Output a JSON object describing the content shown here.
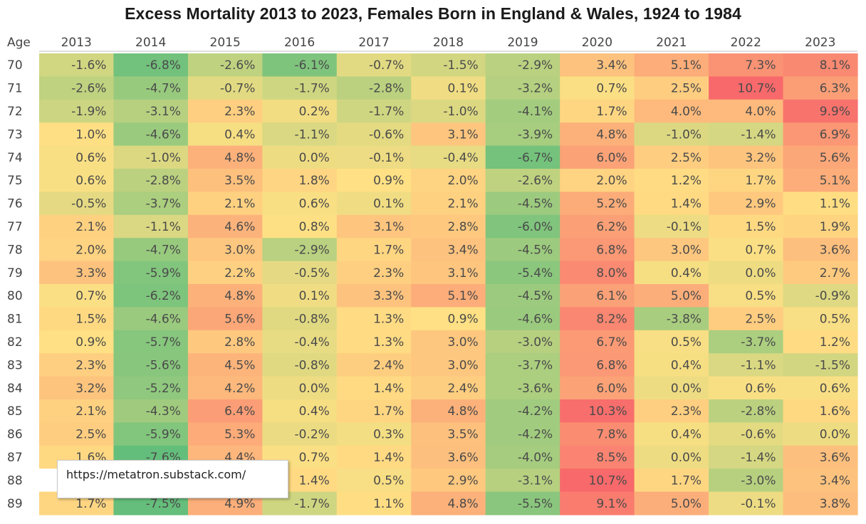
{
  "chart_data": {
    "type": "heatmap",
    "title": "Excess Mortality 2013 to 2023, Females Born in England & Wales, 1924 to 1984",
    "row_header": "Age",
    "columns": [
      "2013",
      "2014",
      "2015",
      "2016",
      "2017",
      "2018",
      "2019",
      "2020",
      "2021",
      "2022",
      "2023"
    ],
    "rows": [
      {
        "age": "70",
        "values": [
          "-1.6%",
          "-6.8%",
          "-2.6%",
          "-6.1%",
          "-0.7%",
          "-1.5%",
          "-2.9%",
          "3.4%",
          "5.1%",
          "7.3%",
          "8.1%"
        ]
      },
      {
        "age": "71",
        "values": [
          "-2.6%",
          "-4.7%",
          "-0.7%",
          "-1.7%",
          "-2.8%",
          "0.1%",
          "-3.2%",
          "0.7%",
          "2.5%",
          "10.7%",
          "6.3%"
        ]
      },
      {
        "age": "72",
        "values": [
          "-1.9%",
          "-3.1%",
          "2.3%",
          "0.2%",
          "-1.7%",
          "-1.0%",
          "-4.1%",
          "1.7%",
          "4.0%",
          "4.0%",
          "9.9%"
        ]
      },
      {
        "age": "73",
        "values": [
          "1.0%",
          "-4.6%",
          "0.4%",
          "-1.1%",
          "-0.6%",
          "3.1%",
          "-3.9%",
          "4.8%",
          "-1.0%",
          "-1.4%",
          "6.9%"
        ]
      },
      {
        "age": "74",
        "values": [
          "0.6%",
          "-1.0%",
          "4.8%",
          "0.0%",
          "-0.1%",
          "-0.4%",
          "-6.7%",
          "6.0%",
          "2.5%",
          "3.2%",
          "5.6%"
        ]
      },
      {
        "age": "75",
        "values": [
          "0.6%",
          "-2.8%",
          "3.5%",
          "1.8%",
          "0.9%",
          "2.0%",
          "-2.6%",
          "2.0%",
          "1.2%",
          "1.7%",
          "5.1%"
        ]
      },
      {
        "age": "76",
        "values": [
          "-0.5%",
          "-3.7%",
          "2.1%",
          "0.6%",
          "0.1%",
          "2.1%",
          "-4.5%",
          "5.2%",
          "1.4%",
          "2.9%",
          "1.1%"
        ]
      },
      {
        "age": "77",
        "values": [
          "2.1%",
          "-1.1%",
          "4.6%",
          "0.8%",
          "3.1%",
          "2.8%",
          "-6.0%",
          "6.2%",
          "-0.1%",
          "1.5%",
          "1.9%"
        ]
      },
      {
        "age": "78",
        "values": [
          "2.0%",
          "-4.7%",
          "3.0%",
          "-2.9%",
          "1.7%",
          "3.4%",
          "-4.5%",
          "6.8%",
          "3.0%",
          "0.7%",
          "3.6%"
        ]
      },
      {
        "age": "79",
        "values": [
          "3.3%",
          "-5.9%",
          "2.2%",
          "-0.5%",
          "2.3%",
          "3.1%",
          "-5.4%",
          "8.0%",
          "0.4%",
          "0.0%",
          "2.7%"
        ]
      },
      {
        "age": "80",
        "values": [
          "0.7%",
          "-6.2%",
          "4.8%",
          "0.1%",
          "3.3%",
          "5.1%",
          "-4.5%",
          "6.1%",
          "5.0%",
          "0.5%",
          "-0.9%"
        ]
      },
      {
        "age": "81",
        "values": [
          "1.5%",
          "-4.6%",
          "5.6%",
          "-0.8%",
          "1.3%",
          "0.9%",
          "-4.6%",
          "8.2%",
          "-3.8%",
          "2.5%",
          "0.5%"
        ]
      },
      {
        "age": "82",
        "values": [
          "0.9%",
          "-5.7%",
          "2.8%",
          "-0.4%",
          "1.3%",
          "3.0%",
          "-3.0%",
          "6.7%",
          "0.5%",
          "-3.7%",
          "1.2%"
        ]
      },
      {
        "age": "83",
        "values": [
          "2.3%",
          "-5.6%",
          "4.5%",
          "-0.8%",
          "2.4%",
          "3.0%",
          "-3.7%",
          "6.8%",
          "0.4%",
          "-1.1%",
          "-1.5%"
        ]
      },
      {
        "age": "84",
        "values": [
          "3.2%",
          "-5.2%",
          "4.2%",
          "0.0%",
          "1.4%",
          "2.4%",
          "-3.6%",
          "6.0%",
          "0.0%",
          "0.6%",
          "0.6%"
        ]
      },
      {
        "age": "85",
        "values": [
          "2.1%",
          "-4.3%",
          "6.4%",
          "0.4%",
          "1.7%",
          "4.8%",
          "-4.2%",
          "10.3%",
          "2.3%",
          "-2.8%",
          "1.6%"
        ]
      },
      {
        "age": "86",
        "values": [
          "2.5%",
          "-5.9%",
          "5.3%",
          "-0.2%",
          "0.3%",
          "3.5%",
          "-4.2%",
          "7.8%",
          "0.4%",
          "-0.6%",
          "0.0%"
        ]
      },
      {
        "age": "87",
        "values": [
          "1.6%",
          "-7.6%",
          "4.4%",
          "0.7%",
          "1.4%",
          "3.6%",
          "-4.0%",
          "8.5%",
          "0.0%",
          "-1.4%",
          "3.6%"
        ]
      },
      {
        "age": "88",
        "values": [
          "",
          "",
          "",
          "1.4%",
          "0.5%",
          "2.9%",
          "-3.1%",
          "10.7%",
          "1.7%",
          "-3.0%",
          "3.4%"
        ]
      },
      {
        "age": "89",
        "values": [
          "1.7%",
          "-7.5%",
          "4.9%",
          "-1.7%",
          "1.1%",
          "4.8%",
          "-5.5%",
          "9.1%",
          "5.0%",
          "-0.1%",
          "3.8%"
        ]
      }
    ],
    "color_scale": {
      "low": "#63be7b",
      "mid": "#ffe084",
      "high": "#f8696b"
    }
  },
  "overlay": {
    "url": "https://metatron.substack.com/"
  }
}
